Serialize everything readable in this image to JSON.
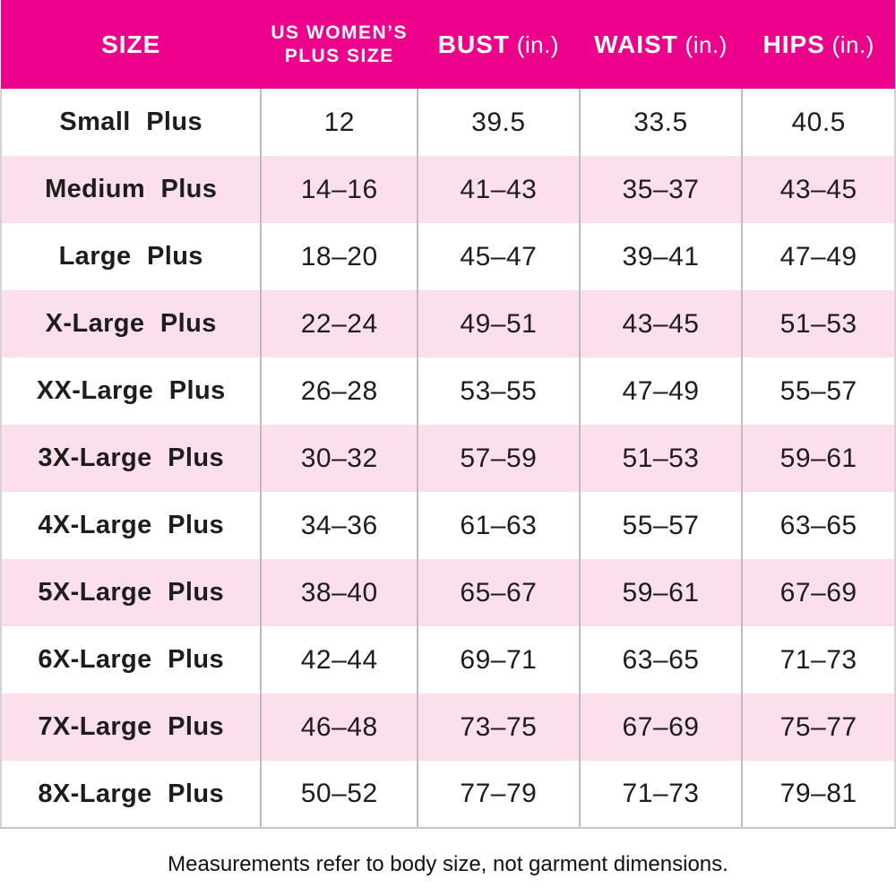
{
  "chart_data": {
    "type": "table",
    "columns": [
      {
        "label": "SIZE",
        "lines": [
          "SIZE"
        ],
        "unit": ""
      },
      {
        "label": "US WOMEN'S PLUS SIZE",
        "lines": [
          "US WOMEN’S",
          "PLUS SIZE"
        ],
        "unit": ""
      },
      {
        "label": "BUST",
        "lines": [
          "BUST"
        ],
        "unit": "(in.)"
      },
      {
        "label": "WAIST",
        "lines": [
          "WAIST"
        ],
        "unit": "(in.)"
      },
      {
        "label": "HIPS",
        "lines": [
          "HIPS"
        ],
        "unit": "(in.)"
      }
    ],
    "rows": [
      [
        "Small Plus",
        "12",
        "39.5",
        "33.5",
        "40.5"
      ],
      [
        "Medium Plus",
        "14–16",
        "41–43",
        "35–37",
        "43–45"
      ],
      [
        "Large Plus",
        "18–20",
        "45–47",
        "39–41",
        "47–49"
      ],
      [
        "X-Large Plus",
        "22–24",
        "49–51",
        "43–45",
        "51–53"
      ],
      [
        "XX-Large Plus",
        "26–28",
        "53–55",
        "47–49",
        "55–57"
      ],
      [
        "3X-Large Plus",
        "30–32",
        "57–59",
        "51–53",
        "59–61"
      ],
      [
        "4X-Large Plus",
        "34–36",
        "61–63",
        "55–57",
        "63–65"
      ],
      [
        "5X-Large Plus",
        "38–40",
        "65–67",
        "59–61",
        "67–69"
      ],
      [
        "6X-Large Plus",
        "42–44",
        "69–71",
        "63–65",
        "71–73"
      ],
      [
        "7X-Large Plus",
        "46–48",
        "73–75",
        "67–69",
        "75–77"
      ],
      [
        "8X-Large Plus",
        "50–52",
        "77–79",
        "71–73",
        "79–81"
      ]
    ],
    "title": "",
    "legend": null,
    "grid": "column dividers only, alternating row shading"
  },
  "footer": {
    "note": "Measurements refer to body size, not garment dimensions."
  },
  "colors": {
    "header_bg": "#ec008c",
    "header_text": "#ffffff",
    "row_alt_bg": "#fbdfec",
    "divider": "#bdbdbd",
    "text": "#1e1c1d"
  }
}
